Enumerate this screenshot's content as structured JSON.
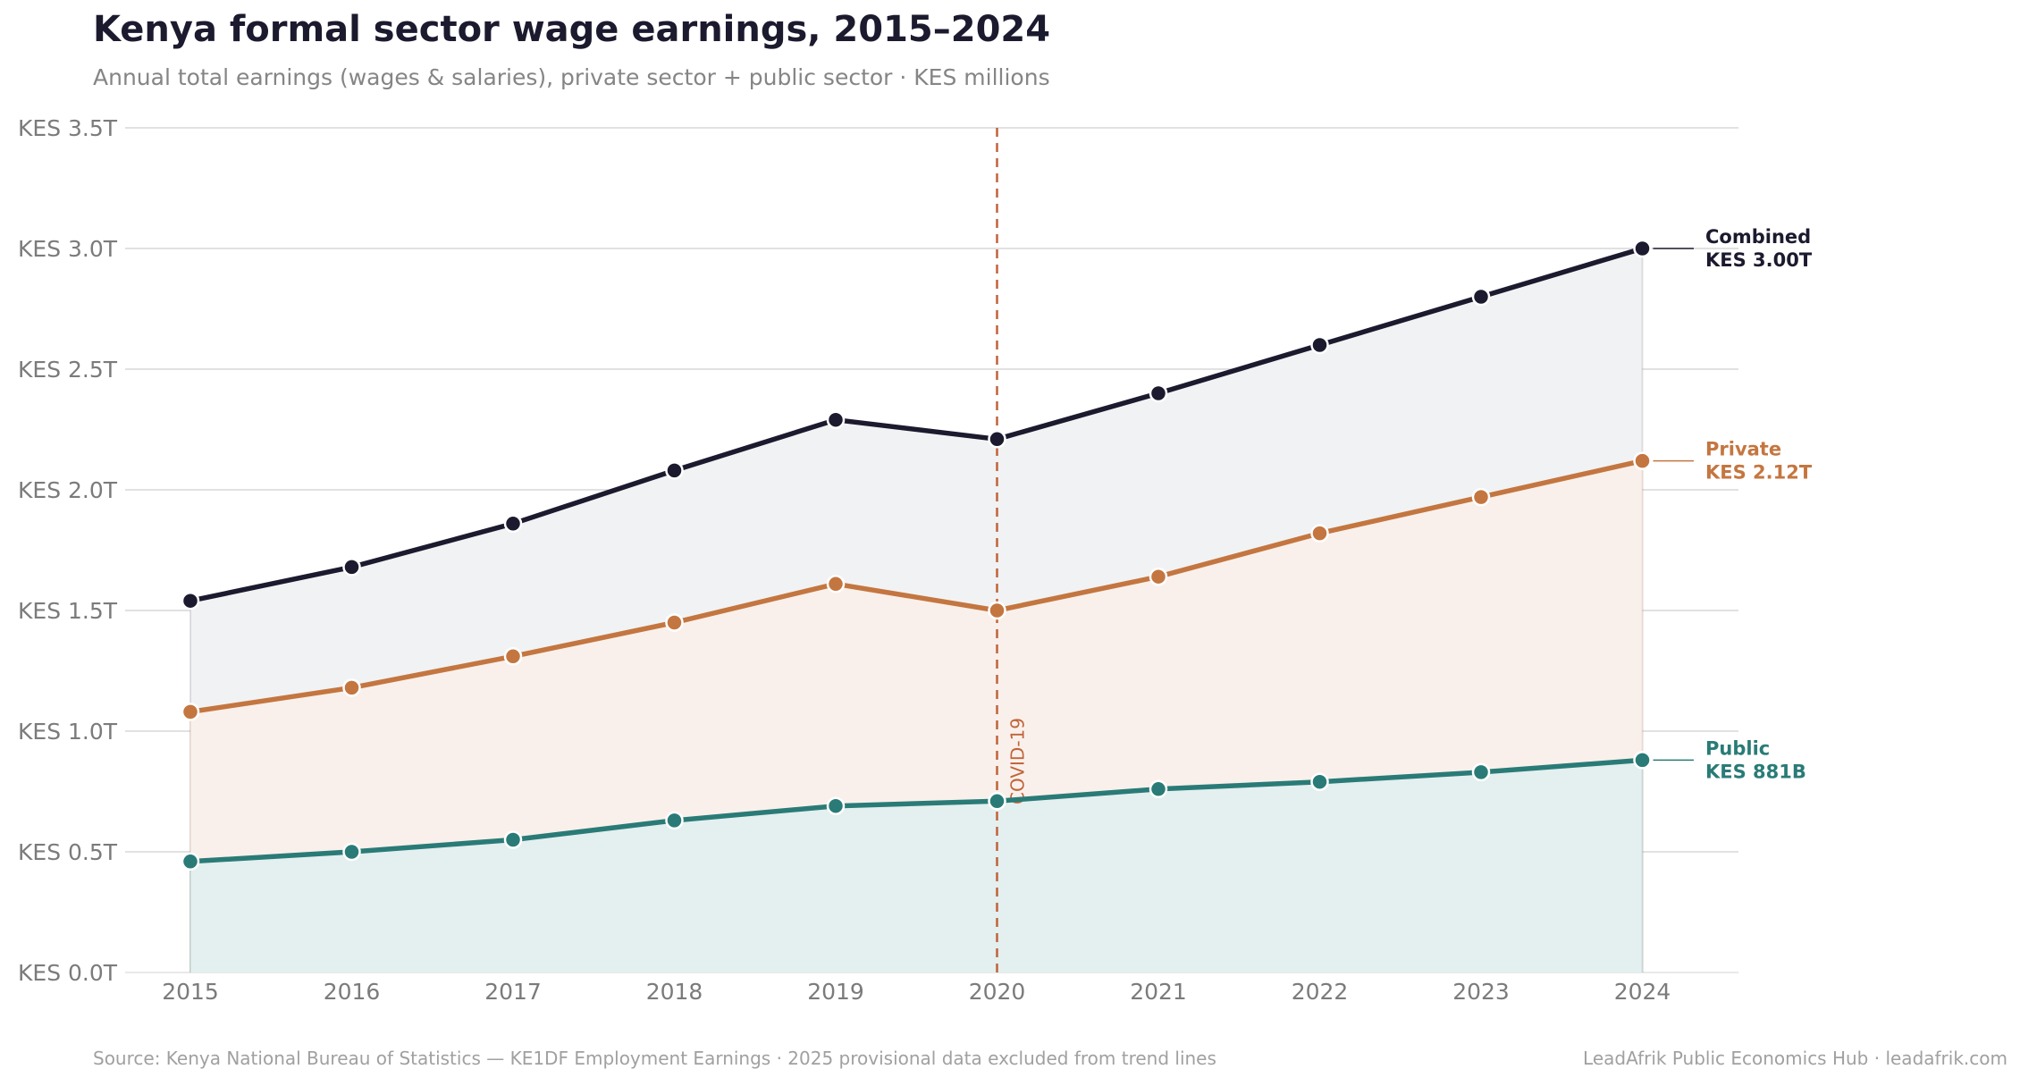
{
  "title": "Kenya formal sector wage earnings, 2015–2024",
  "subtitle": "Annual total earnings (wages & salaries), private sector + public sector  ·  KES millions",
  "footer": {
    "source": "Source: Kenya National Bureau of Statistics — KE1DF Employment Earnings   ·   2025 provisional data excluded from trend lines",
    "credit": "LeadAfrik Public Economics Hub   ·   leadafrik.com"
  },
  "chart_data": {
    "type": "line",
    "x": [
      2015,
      2016,
      2017,
      2018,
      2019,
      2020,
      2021,
      2022,
      2023,
      2024
    ],
    "ylim": [
      0,
      3.5
    ],
    "yticks": [
      0,
      0.5,
      1.0,
      1.5,
      2.0,
      2.5,
      3.0,
      3.5
    ],
    "ytick_labels": [
      "KES 0.0T",
      "KES 0.5T",
      "KES 1.0T",
      "KES 1.5T",
      "KES 2.0T",
      "KES 2.5T",
      "KES 3.0T",
      "KES 3.5T"
    ],
    "xtick_labels": [
      "2015",
      "2016",
      "2017",
      "2018",
      "2019",
      "2020",
      "2021",
      "2022",
      "2023",
      "2024"
    ],
    "y_unit": "trillion KES",
    "grid": true,
    "series": [
      {
        "name": "Combined",
        "end_label": "KES 3.00T",
        "color": "#1b1a2e",
        "fill": "#f1f2f3",
        "values": [
          1.54,
          1.68,
          1.86,
          2.08,
          2.29,
          2.21,
          2.4,
          2.6,
          2.8,
          3.0
        ]
      },
      {
        "name": "Private",
        "end_label": "KES 2.12T",
        "color": "#c47640",
        "fill": "#f9f0eb",
        "values": [
          1.08,
          1.18,
          1.31,
          1.45,
          1.61,
          1.5,
          1.64,
          1.82,
          1.97,
          2.12
        ]
      },
      {
        "name": "Public",
        "end_label": "KES 881B",
        "color": "#2a7b77",
        "fill": "#e4efef",
        "values": [
          0.46,
          0.5,
          0.55,
          0.63,
          0.69,
          0.71,
          0.76,
          0.79,
          0.83,
          0.88
        ]
      }
    ],
    "annotations": [
      {
        "type": "vline",
        "x": 2020,
        "label": "COVID-19",
        "color": "#c0643a"
      }
    ]
  }
}
